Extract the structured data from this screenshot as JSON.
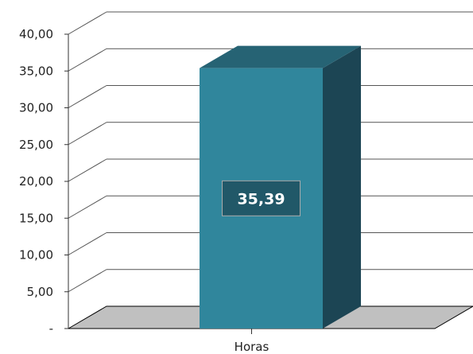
{
  "chart_data": {
    "type": "bar",
    "categories": [
      "Horas"
    ],
    "series": [
      {
        "values": [
          35.39
        ]
      }
    ],
    "data_labels": [
      "35,39"
    ],
    "ylim": [
      0,
      40
    ],
    "y_ticks": [
      {
        "value": 0,
        "label": "-"
      },
      {
        "value": 5,
        "label": "5,00"
      },
      {
        "value": 10,
        "label": "10,00"
      },
      {
        "value": 15,
        "label": "15,00"
      },
      {
        "value": 20,
        "label": "20,00"
      },
      {
        "value": 25,
        "label": "25,00"
      },
      {
        "value": 30,
        "label": "30,00"
      },
      {
        "value": 35,
        "label": "35,00"
      },
      {
        "value": 40,
        "label": "40,00"
      }
    ],
    "title": "",
    "xlabel": "",
    "ylabel": "",
    "grid": true,
    "legend": "none",
    "style": "3d",
    "colors": {
      "bar_front": "#30869c",
      "bar_side": "#1c4554",
      "bar_top": "#266374",
      "floor": "#c0c0c0",
      "gridline": "#555555",
      "label_box": "#215868",
      "label_border": "#aaaaaa"
    }
  }
}
